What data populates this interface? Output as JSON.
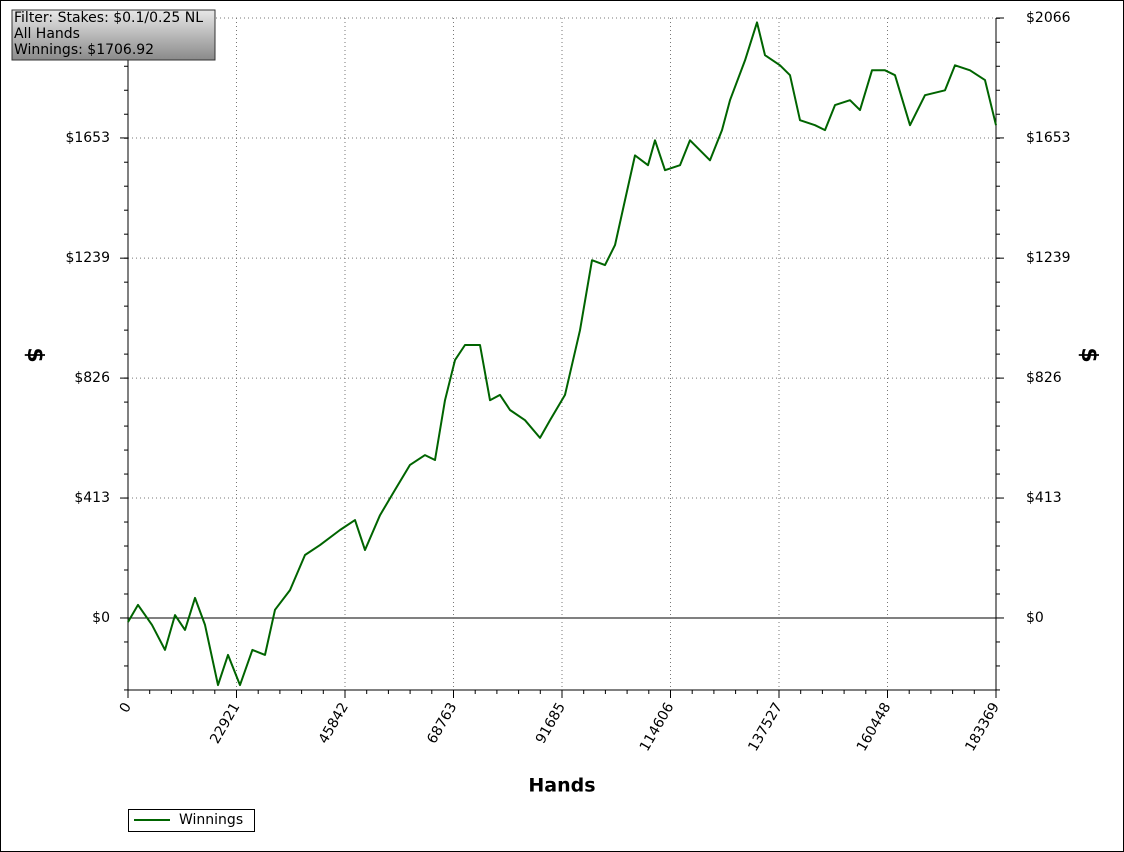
{
  "chart_data": {
    "type": "line",
    "info": [
      "Filter: Stakes: $0.1/0.25 NL",
      "All Hands",
      "Winnings: $1706.92"
    ],
    "xlabel": "Hands",
    "ylabel": "$",
    "y2label": "$",
    "x": [
      0,
      2113,
      5070,
      7816,
      9929,
      12041,
      14154,
      16266,
      19013,
      21125,
      23660,
      26280,
      28941,
      31054,
      34222,
      37391,
      40560,
      44785,
      47954,
      50066,
      53235,
      56404,
      59573,
      62741,
      64854,
      66966,
      69079,
      71191,
      74360,
      76472,
      78585,
      80697,
      83866,
      87035,
      89147,
      92316,
      95485,
      98020,
      100766,
      102879,
      104991,
      107104,
      109850,
      111329,
      113441,
      116610,
      118722,
      122947,
      125482,
      127172,
      130341,
      132876,
      134566,
      137735,
      139848,
      141960,
      145129,
      147241,
      149354,
      152523,
      154635,
      157170,
      159916,
      162029,
      165198,
      168366,
      172591,
      174704,
      177873,
      181041,
      183369
    ],
    "series": [
      {
        "name": "Winnings",
        "color": "#006400",
        "values": [
          -14,
          45,
          -24,
          -110,
          10,
          -41,
          69,
          -24,
          -231,
          -127,
          -231,
          -110,
          -127,
          28,
          96,
          217,
          251,
          303,
          337,
          234,
          354,
          441,
          527,
          561,
          544,
          750,
          888,
          940,
          940,
          750,
          768,
          716,
          681,
          620,
          681,
          768,
          991,
          1232,
          1215,
          1284,
          1439,
          1593,
          1559,
          1645,
          1542,
          1559,
          1645,
          1576,
          1680,
          1783,
          1920,
          2051,
          1938,
          1903,
          1869,
          1714,
          1697,
          1680,
          1766,
          1783,
          1749,
          1886,
          1886,
          1869,
          1697,
          1800,
          1817,
          1903,
          1886,
          1852,
          1697
        ]
      }
    ],
    "xlim": [
      0,
      183369
    ],
    "xticks": [
      0,
      22921,
      45842,
      68763,
      91685,
      114606,
      137527,
      160448,
      183369
    ],
    "ylim": [
      -248,
      2066
    ],
    "yticks": [
      {
        "value": 0,
        "label": "$0"
      },
      {
        "value": 413,
        "label": "$413"
      },
      {
        "value": 826,
        "label": "$826"
      },
      {
        "value": 1239,
        "label": "$1239"
      },
      {
        "value": 1653,
        "label": "$1653"
      },
      {
        "value": 2066,
        "label": "$2066"
      }
    ],
    "grid": true
  }
}
